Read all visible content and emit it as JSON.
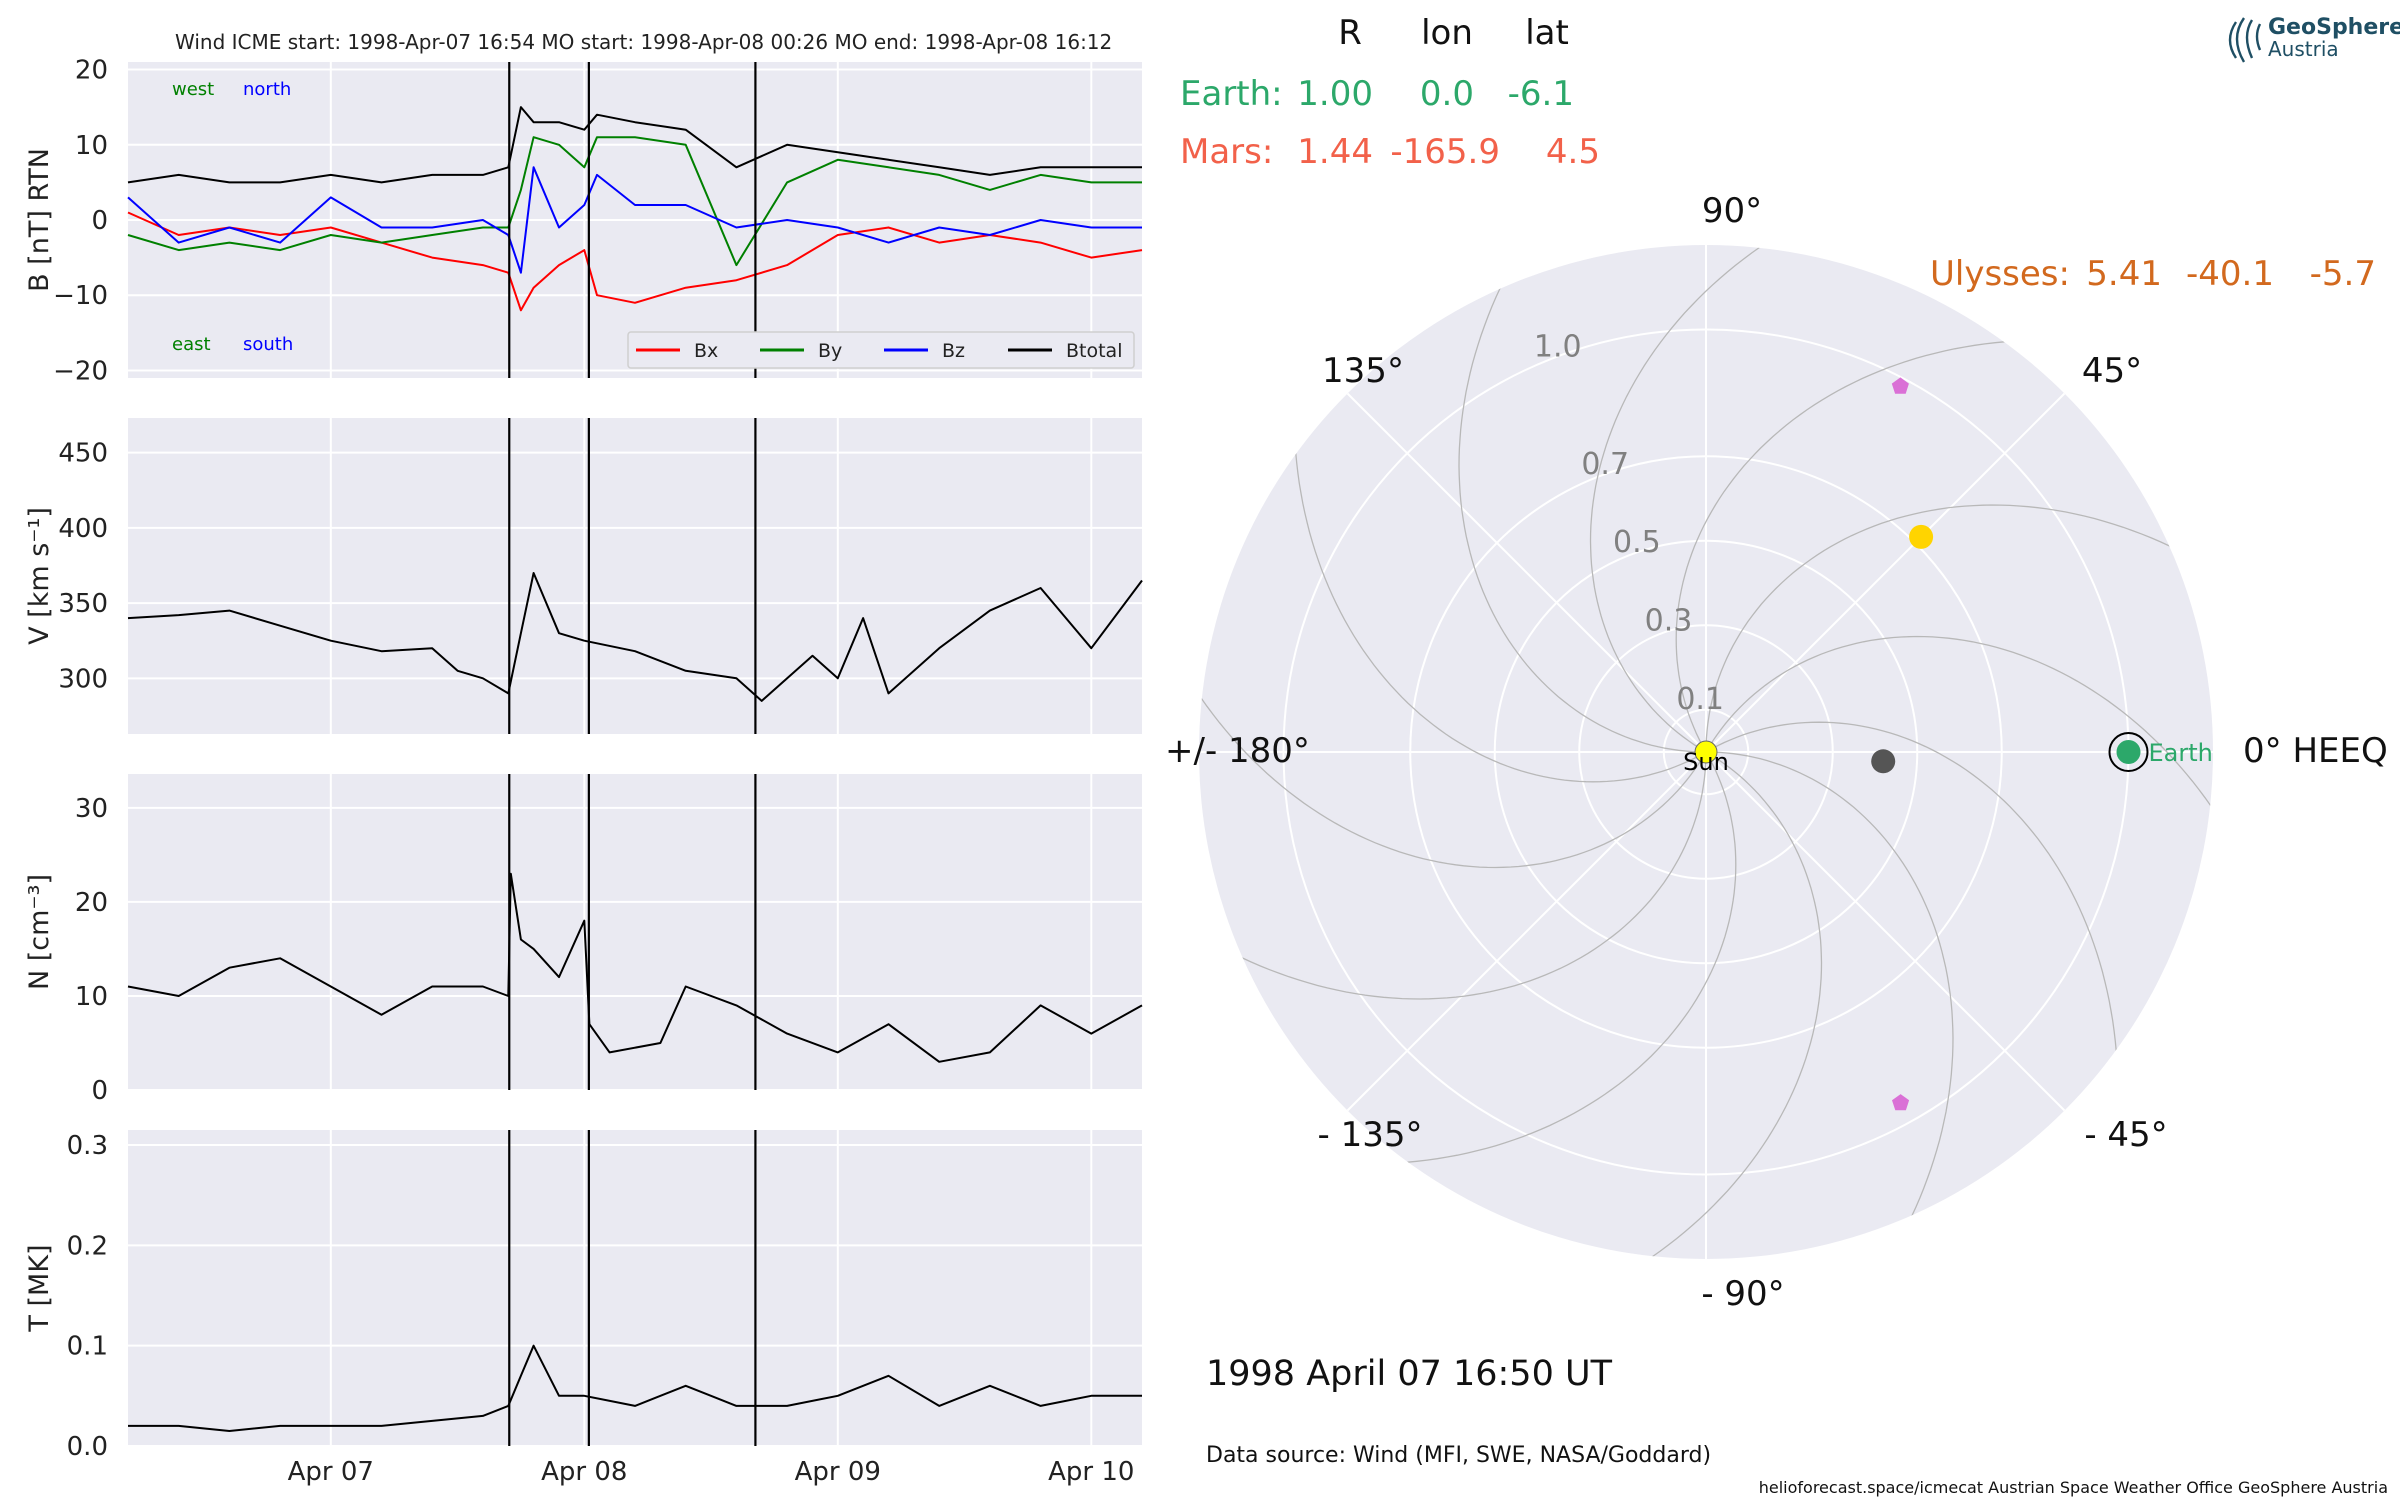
{
  "title": "Wind    ICME start: 1998-Apr-07 16:54   MO start: 1998-Apr-08 00:26   MO end: 1998-Apr-08 16:12",
  "header": {
    "col_r": "R",
    "col_lon": "lon",
    "col_lat": "lat"
  },
  "positions": {
    "earth": {
      "label": "Earth:",
      "r": "1.00",
      "lon": "0.0",
      "lat": "-6.1",
      "color": "#2ca86a"
    },
    "mars": {
      "label": "Mars:",
      "r": "1.44",
      "lon": "-165.9",
      "lat": "4.5",
      "color": "#f2614a"
    },
    "ulysses": {
      "label": "Ulysses:",
      "r": "5.41",
      "lon": "-40.1",
      "lat": "-5.7",
      "color": "#d2691e"
    }
  },
  "date_text": "1998 April 07  16:50 UT",
  "data_source": "Data source: Wind (MFI, SWE, NASA/Goddard)",
  "credits": "helioforecast.space/icmecat   Austrian Space Weather Office   GeoSphere Austria",
  "logo": {
    "line1": "GeoSphere",
    "line2": "Austria"
  },
  "colors": {
    "bx": "#ff0000",
    "by": "#008000",
    "bz": "#0000ff",
    "btotal": "#000000",
    "panel_bg": "#eaeaf2",
    "earth": "#2ca86a",
    "sun": "#ffff00",
    "mars_body": "#ffd400",
    "probe": "#da70d6",
    "object": "#555555"
  },
  "chart_data": [
    {
      "type": "line",
      "panel": "magnetic field",
      "ylabel": "B [nT] RTN",
      "ylim": [
        -21,
        21
      ],
      "yticks": [
        20,
        10,
        0,
        -10,
        -20
      ],
      "ytick_labels": [
        "20",
        "10",
        "0",
        "−10",
        "−20"
      ],
      "direction_labels": {
        "west": "west",
        "north": "north",
        "east": "east",
        "south": "south"
      },
      "legend": [
        "Bx",
        "By",
        "Bz",
        "Btotal"
      ],
      "legend_placement": "lower-right",
      "x_day_range": [
        6.2,
        10.2
      ],
      "event_lines_day": [
        7.704,
        8.018,
        8.675
      ],
      "series": [
        {
          "name": "Bx",
          "x": [
            6.2,
            6.4,
            6.6,
            6.8,
            7.0,
            7.2,
            7.4,
            7.6,
            7.7,
            7.75,
            7.8,
            7.9,
            8.0,
            8.05,
            8.2,
            8.4,
            8.6,
            8.8,
            9.0,
            9.2,
            9.4,
            9.6,
            9.8,
            10.0,
            10.2
          ],
          "y": [
            1,
            -2,
            -1,
            -2,
            -1,
            -3,
            -5,
            -6,
            -7,
            -12,
            -9,
            -6,
            -4,
            -10,
            -11,
            -9,
            -8,
            -6,
            -2,
            -1,
            -3,
            -2,
            -3,
            -5,
            -4
          ]
        },
        {
          "name": "By",
          "x": [
            6.2,
            6.4,
            6.6,
            6.8,
            7.0,
            7.2,
            7.4,
            7.6,
            7.7,
            7.75,
            7.8,
            7.9,
            8.0,
            8.05,
            8.2,
            8.4,
            8.6,
            8.8,
            9.0,
            9.2,
            9.4,
            9.6,
            9.8,
            10.0,
            10.2
          ],
          "y": [
            -2,
            -4,
            -3,
            -4,
            -2,
            -3,
            -2,
            -1,
            -1,
            4,
            11,
            10,
            7,
            11,
            11,
            10,
            -6,
            5,
            8,
            7,
            6,
            4,
            6,
            5,
            5
          ]
        },
        {
          "name": "Bz",
          "x": [
            6.2,
            6.4,
            6.6,
            6.8,
            7.0,
            7.2,
            7.4,
            7.6,
            7.7,
            7.75,
            7.8,
            7.9,
            8.0,
            8.05,
            8.2,
            8.4,
            8.6,
            8.8,
            9.0,
            9.2,
            9.4,
            9.6,
            9.8,
            10.0,
            10.2
          ],
          "y": [
            3,
            -3,
            -1,
            -3,
            3,
            -1,
            -1,
            0,
            -2,
            -7,
            7,
            -1,
            2,
            6,
            2,
            2,
            -1,
            0,
            -1,
            -3,
            -1,
            -2,
            0,
            -1,
            -1
          ]
        },
        {
          "name": "Btotal",
          "x": [
            6.2,
            6.4,
            6.6,
            6.8,
            7.0,
            7.2,
            7.4,
            7.6,
            7.7,
            7.75,
            7.8,
            7.9,
            8.0,
            8.05,
            8.2,
            8.4,
            8.6,
            8.8,
            9.0,
            9.2,
            9.4,
            9.6,
            9.8,
            10.0,
            10.2
          ],
          "y": [
            5,
            6,
            5,
            5,
            6,
            5,
            6,
            6,
            7,
            15,
            13,
            13,
            12,
            14,
            13,
            12,
            7,
            10,
            9,
            8,
            7,
            6,
            7,
            7,
            7
          ]
        }
      ]
    },
    {
      "type": "line",
      "panel": "speed",
      "ylabel": "V [km s⁻¹]",
      "ylim": [
        263,
        473
      ],
      "yticks": [
        450,
        400,
        350,
        300
      ],
      "ytick_labels": [
        "450",
        "400",
        "350",
        "300"
      ],
      "series": [
        {
          "name": "V",
          "x": [
            6.2,
            6.4,
            6.6,
            6.8,
            7.0,
            7.2,
            7.4,
            7.5,
            7.6,
            7.7,
            7.75,
            7.8,
            7.9,
            8.0,
            8.2,
            8.4,
            8.6,
            8.7,
            8.9,
            9.0,
            9.1,
            9.2,
            9.4,
            9.6,
            9.8,
            10.0,
            10.2
          ],
          "y": [
            340,
            342,
            345,
            335,
            325,
            318,
            320,
            305,
            300,
            290,
            330,
            370,
            330,
            325,
            318,
            305,
            300,
            285,
            315,
            300,
            340,
            290,
            320,
            345,
            360,
            320,
            365
          ]
        }
      ]
    },
    {
      "type": "line",
      "panel": "density",
      "ylabel": "N [cm⁻³]",
      "ylim": [
        0,
        33.6
      ],
      "yticks": [
        30,
        20,
        10,
        0
      ],
      "ytick_labels": [
        "30",
        "20",
        "10",
        "0"
      ],
      "series": [
        {
          "name": "N",
          "x": [
            6.2,
            6.4,
            6.6,
            6.8,
            7.0,
            7.2,
            7.4,
            7.6,
            7.7,
            7.71,
            7.75,
            7.8,
            7.9,
            8.0,
            8.02,
            8.1,
            8.3,
            8.4,
            8.6,
            8.8,
            9.0,
            9.2,
            9.4,
            9.6,
            9.8,
            10.0,
            10.2
          ],
          "y": [
            11,
            10,
            13,
            14,
            11,
            8,
            11,
            11,
            10,
            23,
            16,
            15,
            12,
            18,
            7,
            4,
            5,
            11,
            9,
            6,
            4,
            7,
            3,
            4,
            9,
            6,
            9
          ]
        }
      ]
    },
    {
      "type": "line",
      "panel": "temperature",
      "ylabel": "T [MK]",
      "ylim": [
        0,
        0.315
      ],
      "yticks": [
        0.3,
        0.2,
        0.1,
        0.0
      ],
      "ytick_labels": [
        "0.3",
        "0.2",
        "0.1",
        "0.0"
      ],
      "xtick_labels": [
        "Apr 07",
        "Apr 08",
        "Apr 09",
        "Apr 10"
      ],
      "xtick_days": [
        7,
        8,
        9,
        10
      ],
      "series": [
        {
          "name": "T",
          "x": [
            6.2,
            6.4,
            6.6,
            6.8,
            7.0,
            7.2,
            7.4,
            7.6,
            7.7,
            7.75,
            7.8,
            7.9,
            8.0,
            8.2,
            8.4,
            8.6,
            8.8,
            9.0,
            9.2,
            9.4,
            9.6,
            9.8,
            10.0,
            10.2
          ],
          "y": [
            0.02,
            0.02,
            0.015,
            0.02,
            0.02,
            0.02,
            0.025,
            0.03,
            0.04,
            0.07,
            0.1,
            0.05,
            0.05,
            0.04,
            0.06,
            0.04,
            0.04,
            0.05,
            0.07,
            0.04,
            0.06,
            0.04,
            0.05,
            0.05
          ]
        }
      ]
    },
    {
      "type": "polar",
      "panel": "heliospheric positions",
      "angle_labels": {
        "a0": "0° HEEQ",
        "a45": "45°",
        "a90": "90°",
        "a135": "135°",
        "a180": "+/- 180°",
        "am135": "- 135°",
        "am90": "- 90°",
        "am45": "- 45°"
      },
      "radial_ticks": [
        0.1,
        0.3,
        0.5,
        0.7,
        1.0
      ],
      "radial_tick_labels": [
        "0.1",
        "0.3",
        "0.5",
        "0.7",
        "1.0"
      ],
      "rlim": [
        0,
        1.2
      ],
      "objects": [
        {
          "name": "Sun",
          "label": "Sun",
          "r": 0.0,
          "lon": 0,
          "marker": "circle",
          "color": "#ffff00"
        },
        {
          "name": "Earth",
          "label": "Earth",
          "r": 1.0,
          "lon": 0.0,
          "marker": "circle",
          "color": "#2ca86a"
        },
        {
          "name": "yellow body",
          "r": 0.72,
          "lon": 45,
          "marker": "circle",
          "color": "#ffd400"
        },
        {
          "name": "grey body",
          "r": 0.42,
          "lon": -3,
          "marker": "circle",
          "color": "#555555"
        },
        {
          "name": "probe 1",
          "r": 0.98,
          "lon": 62,
          "marker": "pentagon",
          "color": "#da70d6"
        },
        {
          "name": "probe 2",
          "r": 0.95,
          "lon": -61,
          "marker": "pentagon",
          "color": "#da70d6"
        }
      ]
    }
  ]
}
